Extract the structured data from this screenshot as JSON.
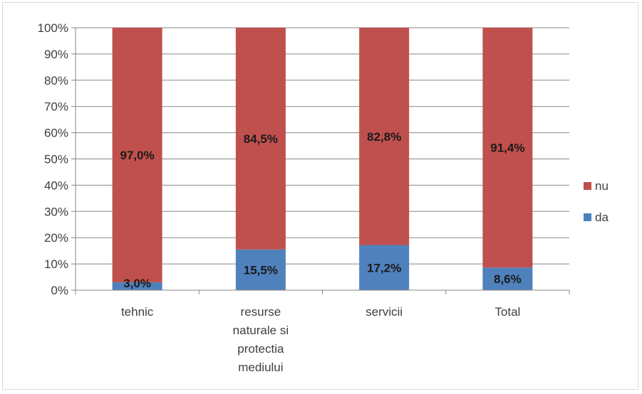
{
  "chart_data": {
    "type": "bar",
    "stacked": true,
    "percent": true,
    "categories": [
      [
        "tehnic"
      ],
      [
        "resurse",
        "naturale si",
        "protectia",
        "mediului"
      ],
      [
        "servicii"
      ],
      [
        "Total"
      ]
    ],
    "series": [
      {
        "name": "da",
        "color": "#4f81bd",
        "values": [
          3.0,
          15.5,
          17.2,
          8.6
        ],
        "labels": [
          "3,0%",
          "15,5%",
          "17,2%",
          "8,6%"
        ]
      },
      {
        "name": "nu",
        "color": "#c0504d",
        "values": [
          97.0,
          84.5,
          82.8,
          91.4
        ],
        "labels": [
          "97,0%",
          "84,5%",
          "82,8%",
          "91,4%"
        ]
      }
    ],
    "y_ticks": [
      "0%",
      "10%",
      "20%",
      "30%",
      "40%",
      "50%",
      "60%",
      "70%",
      "80%",
      "90%",
      "100%"
    ],
    "ylim": [
      0,
      100
    ],
    "grid": true,
    "legend": {
      "position": "right",
      "items": [
        {
          "name": "nu",
          "color": "#c0504d"
        },
        {
          "name": "da",
          "color": "#4f81bd"
        }
      ]
    }
  }
}
